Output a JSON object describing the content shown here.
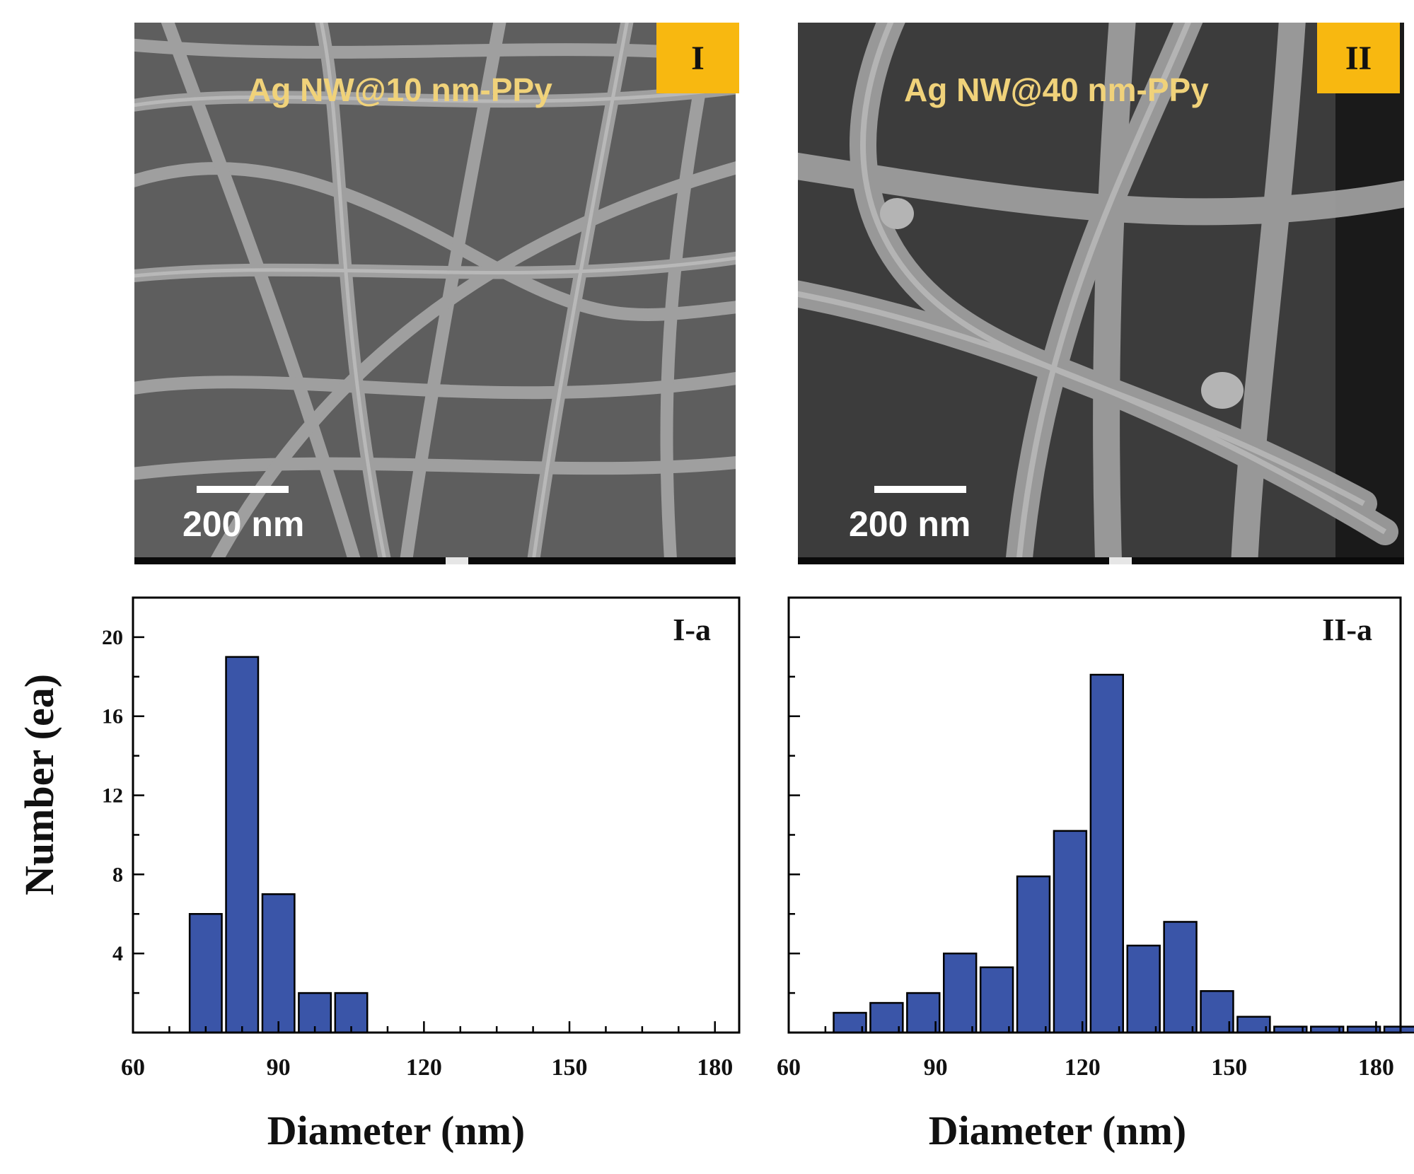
{
  "panels": [
    {
      "id": "I",
      "badge": "I",
      "label": "Ag NW@10 nm-PPy",
      "scale": "200 nm"
    },
    {
      "id": "II",
      "badge": "II",
      "label": "Ag NW@40 nm-PPy",
      "scale": "200 nm"
    }
  ],
  "colors": {
    "bar": "#3a55a8",
    "badge": "#f8b810",
    "sem_label": "#f0d27a"
  },
  "ylabel": "Number (ea)",
  "chart_data": [
    {
      "type": "bar",
      "title": "I-a",
      "xlabel": "Diameter (nm)",
      "ylabel": "Number (ea)",
      "xlim": [
        60,
        185
      ],
      "ylim": [
        0,
        22
      ],
      "xticks": [
        60,
        90,
        120,
        150,
        180
      ],
      "yticks": [
        4,
        8,
        12,
        16,
        20
      ],
      "x": [
        75,
        82.5,
        90,
        97.5,
        105
      ],
      "values": [
        6,
        19,
        7,
        2,
        2
      ]
    },
    {
      "type": "bar",
      "title": "II-a",
      "xlabel": "Diameter (nm)",
      "ylabel": "Number (ea)",
      "xlim": [
        60,
        185
      ],
      "ylim": [
        0,
        22
      ],
      "xticks": [
        60,
        90,
        120,
        150,
        180
      ],
      "yticks": [],
      "x": [
        72.5,
        80,
        87.5,
        95,
        102.5,
        110,
        117.5,
        125,
        132.5,
        140,
        147.5,
        155,
        162.5,
        170,
        177.5,
        185
      ],
      "values": [
        1,
        1.5,
        2,
        4,
        3.3,
        7.9,
        10.2,
        18.1,
        4.4,
        5.6,
        2.1,
        0.8,
        0.3,
        0.3,
        0.3,
        0.3
      ]
    }
  ]
}
